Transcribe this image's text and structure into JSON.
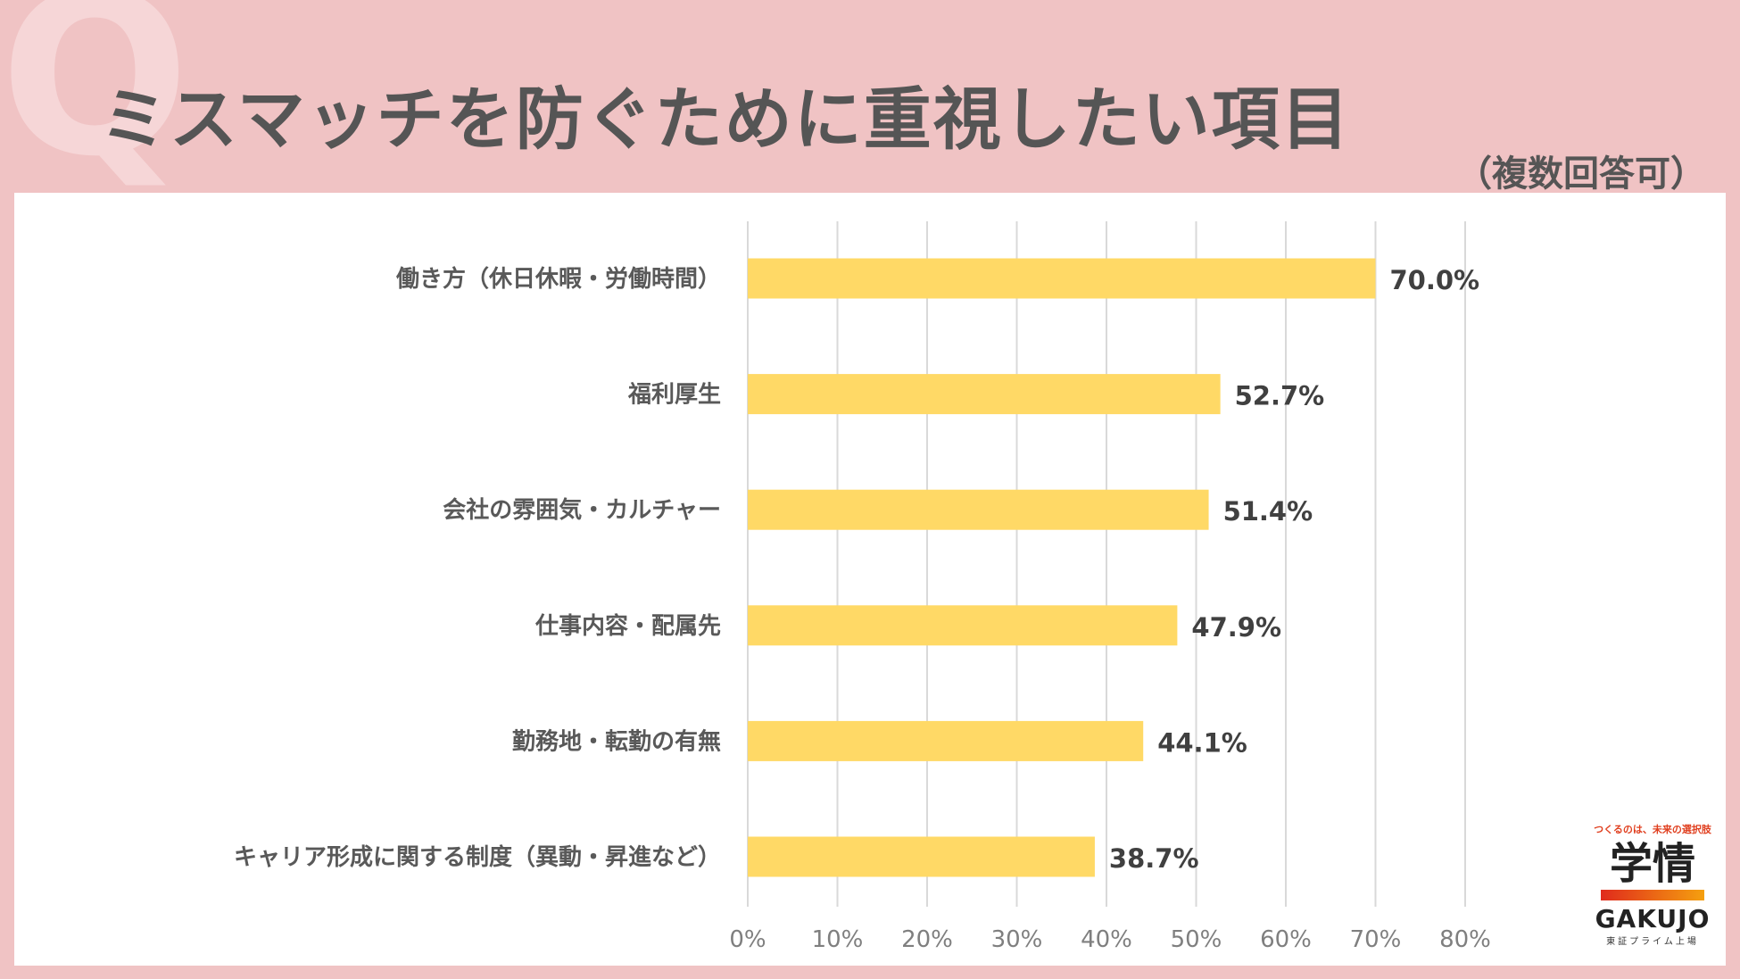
{
  "header": {
    "q_letter": "Q",
    "title": "ミスマッチを防ぐために重視したい項目",
    "subtitle": "（複数回答可）"
  },
  "colors": {
    "background": "#f0c3c4",
    "bar": "#ffd966",
    "gridline": "#d9d9d9"
  },
  "chart_data": {
    "type": "bar",
    "orientation": "horizontal",
    "title": "ミスマッチを防ぐために重視したい項目",
    "subtitle": "（複数回答可）",
    "categories": [
      "働き方（休日休暇・労働時間）",
      "福利厚生",
      "会社の雰囲気・カルチャー",
      "仕事内容・配属先",
      "勤務地・転勤の有無",
      "キャリア形成に関する制度（異動・昇進など）"
    ],
    "values": [
      70.0,
      52.7,
      51.4,
      47.9,
      44.1,
      38.7
    ],
    "value_labels": [
      "70.0%",
      "52.7%",
      "51.4%",
      "47.9%",
      "44.1%",
      "38.7%"
    ],
    "xlim": [
      0,
      80
    ],
    "x_ticks": [
      0,
      10,
      20,
      30,
      40,
      50,
      60,
      70,
      80
    ],
    "x_tick_labels": [
      "0%",
      "10%",
      "20%",
      "30%",
      "40%",
      "50%",
      "60%",
      "70%",
      "80%"
    ],
    "grid": true,
    "legend": "none"
  },
  "logo": {
    "tagline": "つくるのは、未来の選択肢",
    "mark": "学情",
    "name": "GAKUJO",
    "sub": "東証プライム上場"
  }
}
